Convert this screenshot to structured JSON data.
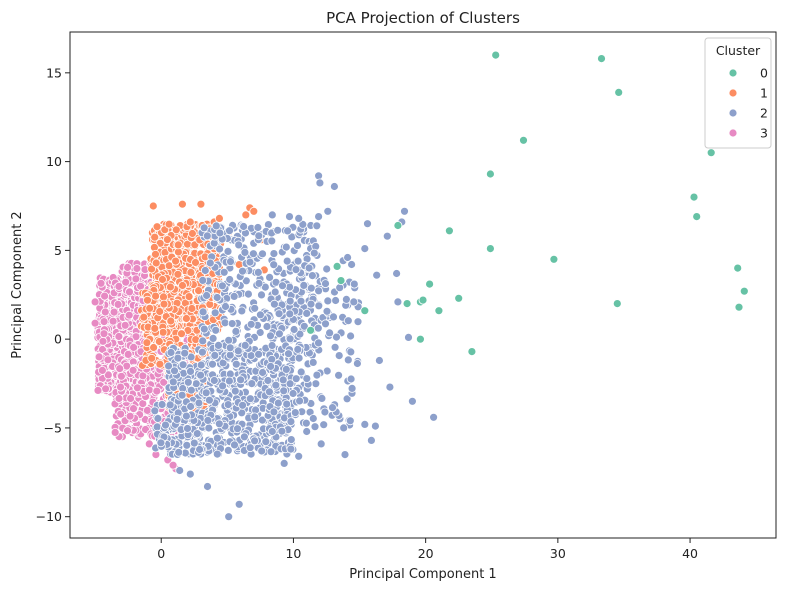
{
  "chart_data": {
    "type": "scatter",
    "title": "PCA Projection of Clusters",
    "xlabel": "Principal Component 1",
    "ylabel": "Principal Component 2",
    "xlim": [
      -6.9,
      46.5
    ],
    "ylim": [
      -11.2,
      17.3
    ],
    "xticks": [
      0,
      10,
      20,
      30,
      40
    ],
    "yticks": [
      -10,
      -5,
      0,
      5,
      10,
      15
    ],
    "grid": false,
    "legend": {
      "title": "Cluster",
      "placement": "top-right"
    },
    "series": [
      {
        "name": "0",
        "color": "#66c2a5",
        "points": [
          [
            25.3,
            16.0
          ],
          [
            33.3,
            15.8
          ],
          [
            34.6,
            13.9
          ],
          [
            27.4,
            11.2
          ],
          [
            41.6,
            10.5
          ],
          [
            40.3,
            8.0
          ],
          [
            40.5,
            6.9
          ],
          [
            24.9,
            9.3
          ],
          [
            17.9,
            6.4
          ],
          [
            21.8,
            6.1
          ],
          [
            24.9,
            5.1
          ],
          [
            29.7,
            4.5
          ],
          [
            13.3,
            4.1
          ],
          [
            13.6,
            3.3
          ],
          [
            43.6,
            4.0
          ],
          [
            44.1,
            2.7
          ],
          [
            43.7,
            1.8
          ],
          [
            34.5,
            2.0
          ],
          [
            20.3,
            3.1
          ],
          [
            22.5,
            2.3
          ],
          [
            19.6,
            2.1
          ],
          [
            19.8,
            2.2
          ],
          [
            18.6,
            2.0
          ],
          [
            21.0,
            1.6
          ],
          [
            15.4,
            1.6
          ],
          [
            11.3,
            0.5
          ],
          [
            19.6,
            0.0
          ],
          [
            23.5,
            -0.7
          ]
        ]
      },
      {
        "name": "1",
        "color": "#fc8d62",
        "density": [
          {
            "x": [
              -0.8,
              4.5
            ],
            "y": [
              0.5,
              6.5
            ],
            "n": 560
          },
          {
            "x": [
              0.5,
              3.5
            ],
            "y": [
              -4.0,
              0.5
            ],
            "n": 160
          },
          {
            "x": [
              -1.5,
              0.8
            ],
            "y": [
              -1.5,
              3.0
            ],
            "n": 100
          }
        ],
        "points": [
          [
            -0.6,
            7.5
          ],
          [
            1.6,
            7.6
          ],
          [
            2.2,
            6.6
          ],
          [
            3.0,
            7.6
          ],
          [
            3.1,
            6.4
          ],
          [
            4.0,
            6.6
          ],
          [
            4.4,
            6.8
          ],
          [
            5.1,
            6.0
          ],
          [
            6.0,
            6.4
          ],
          [
            6.4,
            7.0
          ],
          [
            6.7,
            7.4
          ],
          [
            7.0,
            7.2
          ],
          [
            7.6,
            5.6
          ],
          [
            7.8,
            3.9
          ],
          [
            5.9,
            4.2
          ],
          [
            3.9,
            3.7
          ],
          [
            1.2,
            -3.4
          ],
          [
            2.5,
            -4.0
          ],
          [
            2.3,
            -2.5
          ]
        ]
      },
      {
        "name": "2",
        "color": "#8da0cb",
        "density": [
          {
            "x": [
              0.5,
              10.0
            ],
            "y": [
              -6.5,
              -0.5
            ],
            "n": 620
          },
          {
            "x": [
              3.0,
              12.0
            ],
            "y": [
              -1.0,
              6.5
            ],
            "n": 340
          },
          {
            "x": [
              8.0,
              15.0
            ],
            "y": [
              -5.0,
              4.5
            ],
            "n": 170
          },
          {
            "x": [
              -0.5,
              3.0
            ],
            "y": [
              -6.5,
              -3.5
            ],
            "n": 70
          }
        ],
        "points": [
          [
            11.9,
            9.2
          ],
          [
            12.0,
            8.8
          ],
          [
            13.1,
            8.6
          ],
          [
            12.6,
            7.2
          ],
          [
            11.9,
            6.9
          ],
          [
            10.4,
            6.8
          ],
          [
            8.4,
            7.0
          ],
          [
            9.7,
            6.9
          ],
          [
            15.6,
            6.5
          ],
          [
            17.1,
            5.8
          ],
          [
            18.4,
            7.2
          ],
          [
            18.2,
            6.6
          ],
          [
            14.1,
            4.6
          ],
          [
            15.4,
            5.1
          ],
          [
            16.3,
            3.6
          ],
          [
            13.5,
            2.9
          ],
          [
            14.6,
            3.1
          ],
          [
            17.8,
            3.7
          ],
          [
            17.9,
            2.1
          ],
          [
            18.7,
            0.1
          ],
          [
            16.5,
            -1.2
          ],
          [
            17.3,
            -2.7
          ],
          [
            19.0,
            -3.5
          ],
          [
            20.6,
            -4.4
          ],
          [
            15.4,
            -4.8
          ],
          [
            16.2,
            -4.9
          ],
          [
            15.9,
            -5.7
          ],
          [
            14.3,
            -4.6
          ],
          [
            13.8,
            -5.0
          ],
          [
            13.9,
            -6.5
          ],
          [
            12.1,
            -5.9
          ],
          [
            11.0,
            -5.2
          ],
          [
            10.4,
            -6.6
          ],
          [
            9.3,
            -7.0
          ],
          [
            5.1,
            -10.0
          ],
          [
            5.9,
            -9.3
          ],
          [
            3.5,
            -8.3
          ],
          [
            2.2,
            -7.6
          ],
          [
            1.4,
            -7.4
          ],
          [
            7.6,
            -6.3
          ],
          [
            8.4,
            -5.2
          ]
        ]
      },
      {
        "name": "3",
        "color": "#e78ac3",
        "density": [
          {
            "x": [
              -4.8,
              -0.5
            ],
            "y": [
              -3.0,
              3.5
            ],
            "n": 750
          },
          {
            "x": [
              -3.5,
              1.8
            ],
            "y": [
              -5.5,
              -1.5
            ],
            "n": 330
          },
          {
            "x": [
              -3.0,
              1.5
            ],
            "y": [
              2.5,
              4.3
            ],
            "n": 180
          },
          {
            "x": [
              -0.8,
              2.2
            ],
            "y": [
              -1.5,
              2.5
            ],
            "n": 120
          }
        ],
        "points": [
          [
            -0.4,
            -6.5
          ],
          [
            0.5,
            -6.8
          ],
          [
            1.1,
            -7.3
          ],
          [
            0.9,
            -7.1
          ],
          [
            -0.9,
            -5.9
          ],
          [
            -5.0,
            0.9
          ],
          [
            -5.0,
            2.1
          ],
          [
            -4.7,
            -1.0
          ]
        ]
      }
    ]
  }
}
